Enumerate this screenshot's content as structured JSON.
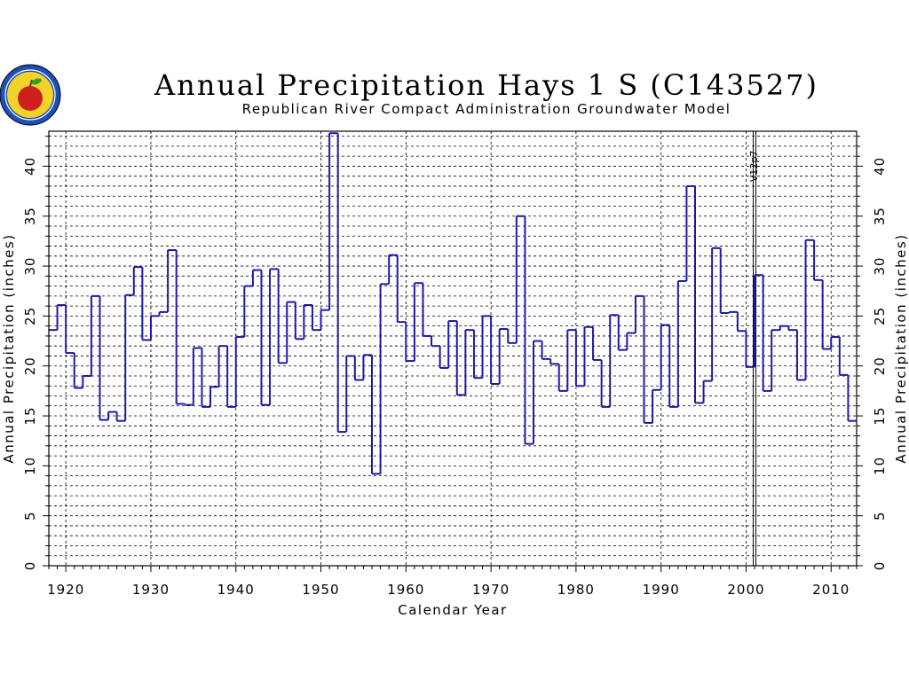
{
  "chart_data": {
    "type": "line",
    "step": true,
    "title": "Annual Precipitation Hays 1 S (C143527)",
    "subtitle": "Republican River Compact Administration Groundwater Model",
    "xlabel": "Calendar Year",
    "ylabel": "Annual Precipitation (inches)",
    "xlim": [
      1918,
      2013
    ],
    "ylim": [
      0,
      43.5
    ],
    "x_ticks": [
      1920,
      1930,
      1940,
      1950,
      1960,
      1970,
      1980,
      1990,
      2000,
      2010
    ],
    "y_ticks": [
      0,
      5,
      10,
      15,
      20,
      25,
      30,
      35,
      40
    ],
    "grid": true,
    "annotation": {
      "label": "V12p7",
      "year": 2001
    },
    "series_color": "#1a1aaa",
    "x": [
      1918,
      1919,
      1920,
      1921,
      1922,
      1923,
      1924,
      1925,
      1926,
      1927,
      1928,
      1929,
      1930,
      1931,
      1932,
      1933,
      1934,
      1935,
      1936,
      1937,
      1938,
      1939,
      1940,
      1941,
      1942,
      1943,
      1944,
      1945,
      1946,
      1947,
      1948,
      1949,
      1950,
      1951,
      1952,
      1953,
      1954,
      1955,
      1956,
      1957,
      1958,
      1959,
      1960,
      1961,
      1962,
      1963,
      1964,
      1965,
      1966,
      1967,
      1968,
      1969,
      1970,
      1971,
      1972,
      1973,
      1974,
      1975,
      1976,
      1977,
      1978,
      1979,
      1980,
      1981,
      1982,
      1983,
      1984,
      1985,
      1986,
      1987,
      1988,
      1989,
      1990,
      1991,
      1992,
      1993,
      1994,
      1995,
      1996,
      1997,
      1998,
      1999,
      2000,
      2001,
      2002,
      2003,
      2004,
      2005,
      2006,
      2007,
      2008,
      2009,
      2010,
      2011,
      2012
    ],
    "values": [
      23.6,
      26.1,
      21.3,
      17.8,
      19.0,
      27.0,
      14.6,
      15.4,
      14.5,
      27.1,
      29.9,
      22.6,
      25.0,
      25.4,
      31.6,
      16.2,
      16.1,
      21.8,
      15.9,
      17.9,
      22.0,
      15.9,
      22.9,
      28.0,
      29.6,
      16.1,
      29.7,
      20.3,
      26.4,
      22.7,
      26.1,
      23.6,
      25.6,
      43.3,
      13.4,
      21.0,
      18.6,
      21.1,
      9.2,
      28.2,
      31.1,
      24.4,
      20.5,
      28.3,
      23.0,
      22.0,
      19.8,
      24.5,
      17.1,
      23.6,
      18.8,
      25.0,
      18.2,
      23.7,
      22.3,
      35.0,
      12.2,
      22.5,
      20.7,
      20.2,
      17.5,
      23.6,
      18.0,
      23.9,
      20.6,
      15.9,
      25.1,
      21.6,
      23.3,
      27.0,
      14.3,
      17.6,
      24.1,
      15.9,
      28.5,
      38.0,
      16.3,
      18.5,
      31.8,
      25.3,
      25.4,
      23.5,
      19.9,
      29.1,
      17.5,
      23.6,
      24.0,
      23.6,
      18.6,
      32.6,
      28.6,
      21.7,
      22.9,
      19.1,
      14.5
    ]
  },
  "logo": {
    "name": "rrca-seal"
  }
}
